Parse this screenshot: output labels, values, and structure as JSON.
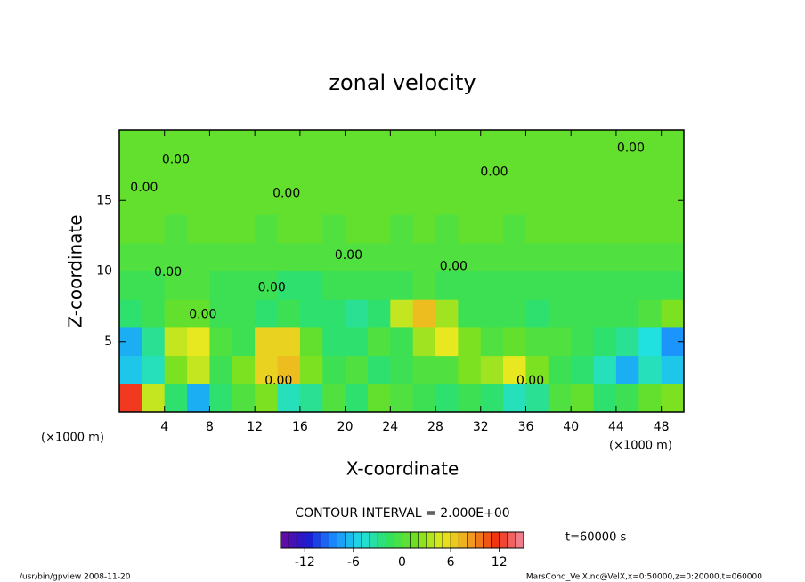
{
  "chart_data": {
    "type": "contour",
    "title": "zonal velocity",
    "x_label": "X-coordinate",
    "y_label": "Z-coordinate",
    "x_unit": "(×1000 m)",
    "y_unit": "(×1000 m)",
    "xlim": [
      0,
      50
    ],
    "ylim": [
      0,
      20
    ],
    "xticks": [
      4,
      8,
      12,
      16,
      20,
      24,
      28,
      32,
      36,
      40,
      44,
      48
    ],
    "yticks": [
      5,
      10,
      15
    ],
    "x": [
      1,
      3,
      5,
      7,
      9,
      11,
      13,
      15,
      17,
      19,
      21,
      23,
      25,
      27,
      29,
      31,
      33,
      35,
      37,
      39,
      41,
      43,
      45,
      47,
      49
    ],
    "z": [
      1,
      3,
      5,
      7,
      9,
      11,
      13,
      15,
      17,
      19
    ],
    "values": [
      [
        12,
        4,
        -2,
        -7,
        -2,
        0,
        2,
        -4,
        -3,
        0,
        -2,
        1,
        0,
        -1,
        -2,
        -1,
        -2,
        -4,
        -3,
        0,
        1,
        -2,
        -1,
        1,
        2
      ],
      [
        -6,
        -4,
        2,
        4,
        -1,
        2,
        6,
        7,
        2,
        -1,
        0,
        -2,
        -1,
        0,
        0,
        2,
        3,
        5,
        2,
        -1,
        -2,
        -4,
        -7,
        -4,
        -6
      ],
      [
        -7,
        -3,
        4,
        5,
        0,
        -1,
        6,
        6,
        1,
        -2,
        -2,
        0,
        -1,
        3,
        5,
        2,
        0,
        1,
        0,
        0,
        -1,
        -2,
        -3,
        -5,
        -8
      ],
      [
        -2,
        -1,
        1,
        1,
        -1,
        -1,
        -2,
        -1,
        -2,
        -2,
        -3,
        -2,
        4,
        7,
        3,
        -1,
        -1,
        -1,
        -2,
        -1,
        -1,
        -1,
        -1,
        0,
        2
      ],
      [
        -1,
        -1,
        0,
        0,
        -1,
        -1,
        -1,
        -2,
        -2,
        -1,
        -1,
        -1,
        -1,
        0,
        -1,
        -1,
        -1,
        -1,
        -1,
        -1,
        -1,
        -1,
        -1,
        -1,
        -1
      ],
      [
        0,
        0,
        0,
        0,
        0,
        0,
        0,
        0,
        0,
        0,
        0,
        0,
        0,
        0,
        0,
        0,
        0,
        0,
        0,
        0,
        0,
        0,
        0,
        0,
        0
      ],
      [
        1,
        1,
        0,
        1,
        1,
        1,
        0,
        1,
        1,
        0,
        1,
        1,
        0,
        1,
        0,
        1,
        1,
        0,
        1,
        1,
        1,
        1,
        1,
        1,
        1
      ],
      [
        1,
        1,
        1,
        1,
        1,
        1,
        1,
        1,
        1,
        1,
        1,
        1,
        1,
        1,
        1,
        1,
        1,
        1,
        1,
        1,
        1,
        1,
        1,
        1,
        1
      ],
      [
        1,
        1,
        1,
        1,
        1,
        1,
        1,
        1,
        1,
        1,
        1,
        1,
        1,
        1,
        1,
        1,
        1,
        1,
        1,
        1,
        1,
        1,
        1,
        1,
        1
      ],
      [
        1,
        1,
        1,
        1,
        1,
        1,
        1,
        1,
        1,
        1,
        1,
        1,
        1,
        1,
        1,
        1,
        1,
        1,
        1,
        1,
        1,
        1,
        1,
        1,
        1
      ]
    ],
    "contour_labels": [
      {
        "value": 0,
        "label": "0.00",
        "x": 5,
        "z": 17.9
      },
      {
        "value": 0,
        "label": "0.00",
        "x": 2.2,
        "z": 15.9
      },
      {
        "value": 0,
        "label": "0.00",
        "x": 14.8,
        "z": 15.5
      },
      {
        "value": 0,
        "label": "0.00",
        "x": 33.2,
        "z": 17
      },
      {
        "value": 0,
        "label": "0.00",
        "x": 45.3,
        "z": 18.7
      },
      {
        "value": 0,
        "label": "0.00",
        "x": 4.3,
        "z": 9.9
      },
      {
        "value": 0,
        "label": "0.00",
        "x": 13.5,
        "z": 8.8
      },
      {
        "value": 0,
        "label": "0.00",
        "x": 20.3,
        "z": 11.1
      },
      {
        "value": 0,
        "label": "0.00",
        "x": 29.6,
        "z": 10.3
      },
      {
        "value": 0,
        "label": "0.00",
        "x": 7.4,
        "z": 6.9
      },
      {
        "value": 0,
        "label": "0.00",
        "x": 14.1,
        "z": 2.2
      },
      {
        "value": 0,
        "label": "0.00",
        "x": 36.4,
        "z": 2.2
      }
    ],
    "contour_interval_text": "CONTOUR INTERVAL = 2.000E+00",
    "time_text": "t=60000 s",
    "clim": [
      -15,
      15
    ],
    "cticks": [
      -12,
      -6,
      0,
      6,
      12
    ],
    "colormap": [
      "#6a0aa0",
      "#1a1ad0",
      "#1a8cff",
      "#20e0e0",
      "#30e060",
      "#70e020",
      "#e8e820",
      "#f0a020",
      "#f03010",
      "#f08ca0"
    ],
    "footer_left": "/usr/bin/gpview  2008-11-20",
    "footer_right": "MarsCond_VelX.nc@VelX,x=0:50000,z=0:20000,t=060000"
  }
}
